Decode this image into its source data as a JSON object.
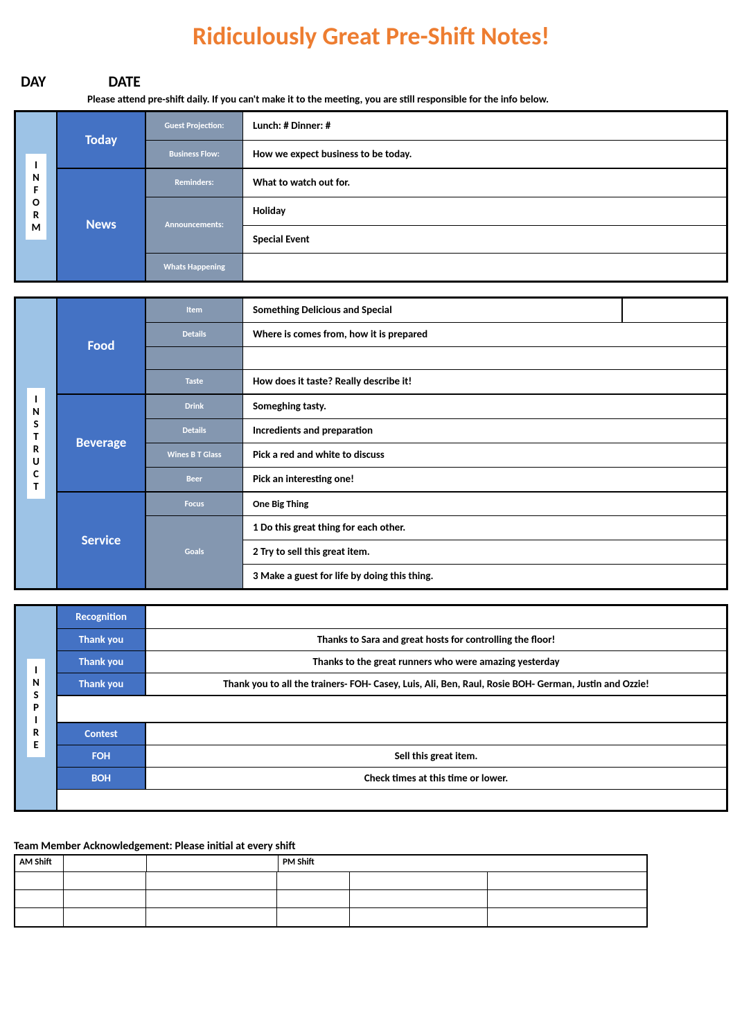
{
  "title": "Ridiculously Great Pre-Shift Notes!",
  "header": {
    "day": "DAY",
    "date": "DATE"
  },
  "subnote": "Please attend pre-shift daily.  If you can't make it to the meeting, you are still responsible for the info below.",
  "colors": {
    "title": "#ed7d31",
    "rail_bg": "#9dc3e6",
    "category_bg": "#4472c4",
    "field_bg": "#8497b0",
    "border": "#000000",
    "page_bg": "#ffffff"
  },
  "inform": {
    "rail_label": "INFORM",
    "today": {
      "label": "Today",
      "guest_projection": {
        "field": "Guest Projection:",
        "value": "Lunch:     #                   Dinner: #"
      },
      "business_flow": {
        "field": "Business Flow:",
        "value": "How we expect business to be today."
      }
    },
    "news": {
      "label": "News",
      "reminders": {
        "field": "Reminders:",
        "value": "What to watch out for."
      },
      "announcements": {
        "field": "Announcements:",
        "values": [
          "Holiday",
          "Special Event"
        ]
      },
      "happening": {
        "field": "Whats Happening",
        "value": ""
      }
    }
  },
  "instruct": {
    "rail_label": "INSTRUCT",
    "food": {
      "label": "Food",
      "item": {
        "field": "Item",
        "value": "Something Delicious and Special"
      },
      "details": {
        "field": "Details",
        "value": "Where is comes from, how it is prepared"
      },
      "blank": {
        "field": "",
        "value": ""
      },
      "taste": {
        "field": "Taste",
        "value": "How does it taste? Really describe it!"
      }
    },
    "beverage": {
      "label": "Beverage",
      "drink": {
        "field": "Drink",
        "value": "Someghing tasty."
      },
      "details": {
        "field": "Details",
        "value": "Incredients and preparation"
      },
      "wines": {
        "field": "Wines B T Glass",
        "value": "Pick a red and white to discuss"
      },
      "beer": {
        "field": "Beer",
        "value": "Pick an interesting one!"
      }
    },
    "service": {
      "label": "Service",
      "focus": {
        "field": "Focus",
        "value": "One Big Thing"
      },
      "goals": {
        "field": "Goals",
        "values": [
          "1  Do this great thing for each other.",
          "2 Try to sell this great item.",
          "3 Make a guest for life by doing this thing."
        ]
      }
    }
  },
  "inspire": {
    "rail_label": "INSPIRE",
    "rows_top": {
      "recognition": {
        "label": "Recognition",
        "value": ""
      },
      "thank1": {
        "label": "Thank you",
        "value": "Thanks to Sara and great hosts for controlling the floor!"
      },
      "thank2": {
        "label": "Thank you",
        "value": "Thanks to the great runners who were amazing yesterday"
      },
      "thank3": {
        "label": "Thank you",
        "value": "Thank you to all the trainers- FOH- Casey, Luis, Ali, Ben, Raul, Rosie  BOH- German, Justin and Ozzie!"
      }
    },
    "rows_bottom": {
      "contest": {
        "label": "Contest",
        "value": ""
      },
      "foh": {
        "label": "FOH",
        "value": "Sell this great item."
      },
      "boh": {
        "label": "BOH",
        "value": "Check times at this time or lower."
      }
    }
  },
  "ack": {
    "title": "Team Member Acknowledgement: Please initial at every shift",
    "am_label": "AM Shift",
    "pm_label": "PM Shift",
    "blank_rows": 3
  }
}
